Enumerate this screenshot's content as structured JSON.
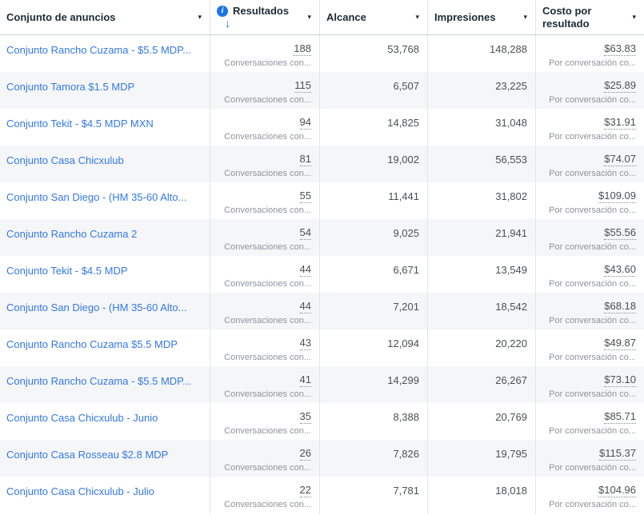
{
  "header": {
    "caret_icon": "▾",
    "columns": [
      {
        "label": "Conjunto de anuncios"
      },
      {
        "label": "Resultados",
        "info_icon": "i",
        "sort_icon": "↓",
        "sort_direction": "descending"
      },
      {
        "label": "Alcance"
      },
      {
        "label": "Impresiones"
      },
      {
        "label": "Costo por resultado"
      }
    ]
  },
  "colors": {
    "link_blue": "#3578e5",
    "accent_blue": "#1b74e4",
    "row_alt_bg": "#f5f6f7",
    "header_text": "#1c2b33",
    "number_text": "#4b4f56",
    "sublabel_text": "#8d949e",
    "column_border": "#e3e5e8"
  },
  "rows": [
    {
      "name": "Conjunto Rancho Cuzama - $5.5 MDP...",
      "results": "188",
      "results_sub": "Conversaciones con...",
      "reach": "53,768",
      "impressions": "148,288",
      "cost": "$63.83",
      "cost_sub": "Por conversación co..."
    },
    {
      "name": "Conjunto Tamora $1.5 MDP",
      "results": "115",
      "results_sub": "Conversaciones con...",
      "reach": "6,507",
      "impressions": "23,225",
      "cost": "$25.89",
      "cost_sub": "Por conversación co..."
    },
    {
      "name": "Conjunto Tekit - $4.5 MDP MXN",
      "results": "94",
      "results_sub": "Conversaciones con...",
      "reach": "14,825",
      "impressions": "31,048",
      "cost": "$31.91",
      "cost_sub": "Por conversación co..."
    },
    {
      "name": "Conjunto Casa Chicxulub",
      "results": "81",
      "results_sub": "Conversaciones con...",
      "reach": "19,002",
      "impressions": "56,553",
      "cost": "$74.07",
      "cost_sub": "Por conversación co..."
    },
    {
      "name": "Conjunto San Diego - (HM 35-60 Alto...",
      "results": "55",
      "results_sub": "Conversaciones con...",
      "reach": "11,441",
      "impressions": "31,802",
      "cost": "$109.09",
      "cost_sub": "Por conversación co..."
    },
    {
      "name": "Conjunto Rancho Cuzama 2",
      "results": "54",
      "results_sub": "Conversaciones con...",
      "reach": "9,025",
      "impressions": "21,941",
      "cost": "$55.56",
      "cost_sub": "Por conversación co..."
    },
    {
      "name": "Conjunto Tekit - $4.5 MDP",
      "results": "44",
      "results_sub": "Conversaciones con...",
      "reach": "6,671",
      "impressions": "13,549",
      "cost": "$43.60",
      "cost_sub": "Por conversación co..."
    },
    {
      "name": "Conjunto San Diego - (HM 35-60 Alto...",
      "results": "44",
      "results_sub": "Conversaciones con...",
      "reach": "7,201",
      "impressions": "18,542",
      "cost": "$68.18",
      "cost_sub": "Por conversación co..."
    },
    {
      "name": "Conjunto Rancho Cuzama $5.5 MDP",
      "results": "43",
      "results_sub": "Conversaciones con...",
      "reach": "12,094",
      "impressions": "20,220",
      "cost": "$49.87",
      "cost_sub": "Por conversación co..."
    },
    {
      "name": "Conjunto Rancho Cuzama - $5.5 MDP...",
      "results": "41",
      "results_sub": "Conversaciones con...",
      "reach": "14,299",
      "impressions": "26,267",
      "cost": "$73.10",
      "cost_sub": "Por conversación co..."
    },
    {
      "name": "Conjunto Casa Chicxulub - Junio",
      "results": "35",
      "results_sub": "Conversaciones con...",
      "reach": "8,388",
      "impressions": "20,769",
      "cost": "$85.71",
      "cost_sub": "Por conversación co..."
    },
    {
      "name": "Conjunto Casa Rosseau $2.8 MDP",
      "results": "26",
      "results_sub": "Conversaciones con...",
      "reach": "7,826",
      "impressions": "19,795",
      "cost": "$115.37",
      "cost_sub": "Por conversación co..."
    },
    {
      "name": "Conjunto Casa Chicxulub - Julio",
      "results": "22",
      "results_sub": "Conversaciones con...",
      "reach": "7,781",
      "impressions": "18,018",
      "cost": "$104.96",
      "cost_sub": "Por conversación co..."
    }
  ]
}
